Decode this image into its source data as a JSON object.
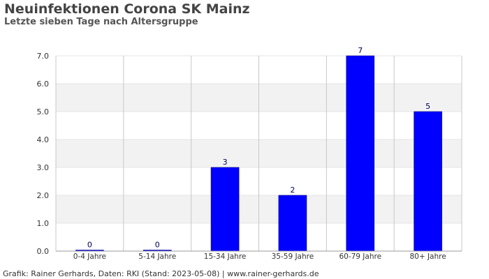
{
  "header": {
    "title": "Neuinfektionen Corona SK Mainz",
    "subtitle": "Letzte sieben Tage nach Altersgruppe"
  },
  "footer": {
    "text": "Grafik: Rainer Gerhards, Daten: RKI (Stand: 2023-05-08) | www.rainer-gerhards.de"
  },
  "chart_data": {
    "type": "bar",
    "title": "Neuinfektionen Corona SK Mainz",
    "subtitle": "Letzte sieben Tage nach Altersgruppe",
    "xlabel": "",
    "ylabel": "",
    "categories": [
      "0-4 Jahre",
      "5-14 Jahre",
      "15-34 Jahre",
      "35-59 Jahre",
      "60-79 Jahre",
      "80+ Jahre"
    ],
    "values": [
      0,
      0,
      3,
      2,
      7,
      5
    ],
    "data_labels": [
      "0",
      "0",
      "3",
      "2",
      "7",
      "5"
    ],
    "ylim": [
      0,
      7
    ],
    "yticks": [
      "0.0",
      "1.0",
      "2.0",
      "3.0",
      "4.0",
      "5.0",
      "6.0",
      "7.0"
    ],
    "grid": true,
    "legend": "none",
    "colors": {
      "bar": "#0000ff",
      "bar_outline": "#000080",
      "band": "#f2f2f2",
      "grid": "#c8c8c8",
      "axis": "#999999",
      "tick_label": "#333333",
      "data_label": "#000055"
    }
  }
}
